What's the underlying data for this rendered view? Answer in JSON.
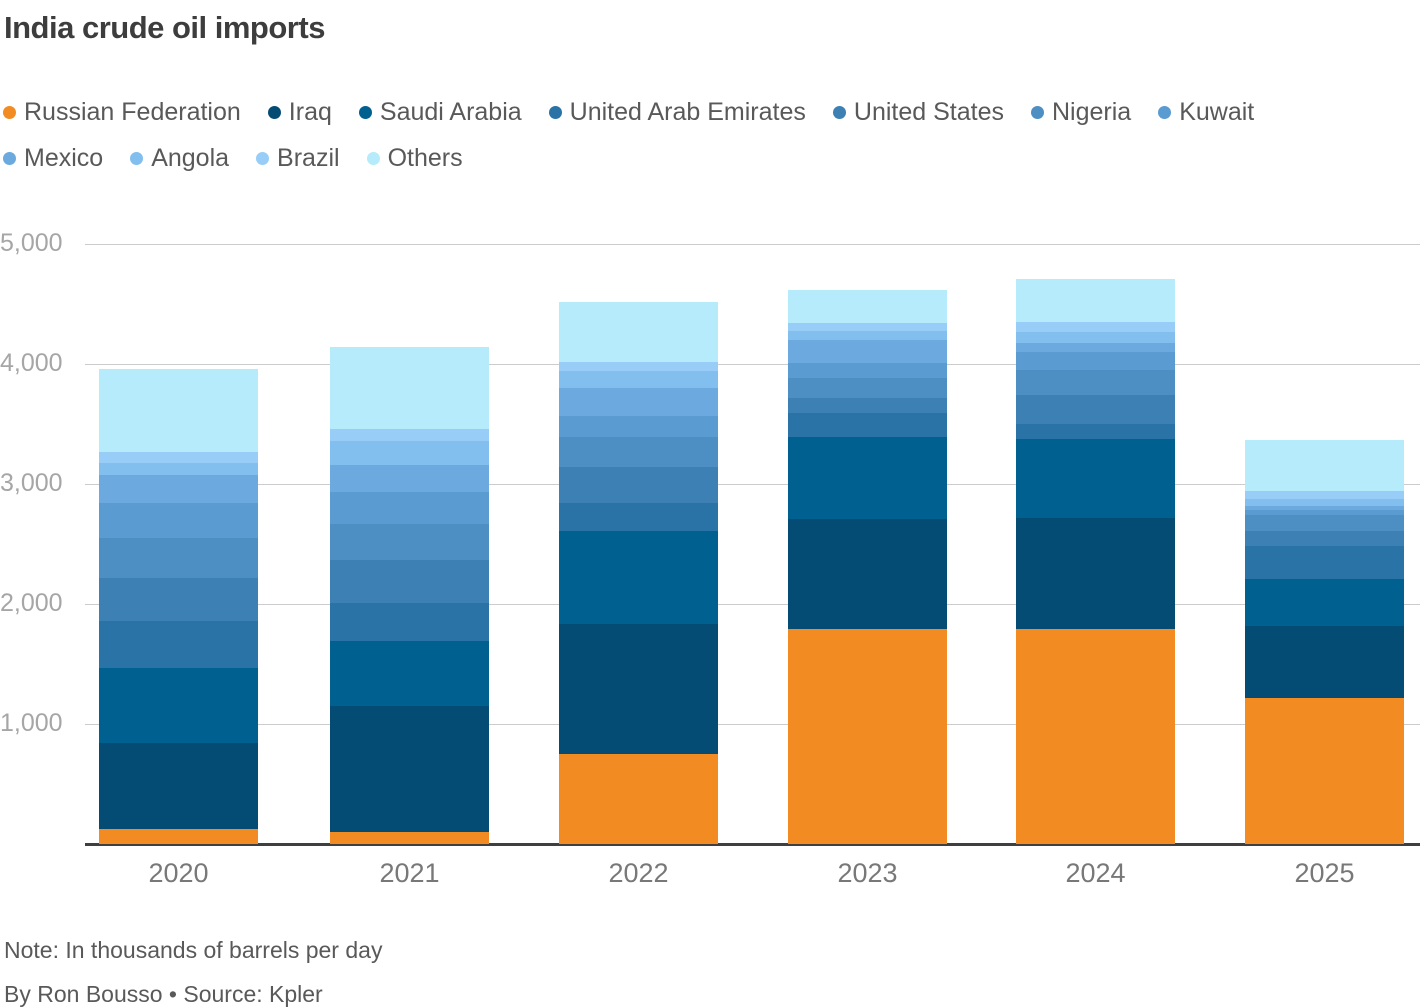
{
  "title": "India crude oil imports",
  "note": "Note: In thousands of barrels per day",
  "byline": "By Ron Bousso • Source: Kpler",
  "colors": {
    "background": "#ffffff",
    "title_text": "#3d3d3d",
    "body_text": "#595959",
    "gridline": "#cccccc",
    "axis_line": "#3f3f3f",
    "tick_label": "#a6a6a6",
    "year_label": "#787878"
  },
  "legend_rows": [
    [
      "Russian Federation",
      "Iraq",
      "Saudi Arabia",
      "United Arab Emirates",
      "United States",
      "Nigeria",
      "Kuwait"
    ],
    [
      "Mexico",
      "Angola",
      "Brazil",
      "Others"
    ]
  ],
  "chart_data": {
    "type": "bar",
    "stacked": true,
    "title": "India crude oil imports",
    "xlabel": "",
    "ylabel": "",
    "unit": "thousands of barrels per day",
    "grid": true,
    "legend_position": "top",
    "ylim": [
      0,
      5000
    ],
    "yticks": [
      {
        "value": 1000,
        "label": "1,000"
      },
      {
        "value": 2000,
        "label": "2,000"
      },
      {
        "value": 3000,
        "label": "3,000"
      },
      {
        "value": 4000,
        "label": "4,000"
      },
      {
        "value": 5000,
        "label": "5,000"
      }
    ],
    "categories": [
      "2020",
      "2021",
      "2022",
      "2023",
      "2024",
      "2025"
    ],
    "series": [
      {
        "name": "Russian Federation",
        "color": "#F28C22",
        "values": [
          125,
          100,
          750,
          1790,
          1790,
          1220
        ]
      },
      {
        "name": "Iraq",
        "color": "#054C75",
        "values": [
          720,
          1050,
          1080,
          915,
          930,
          595
        ]
      },
      {
        "name": "Saudi Arabia",
        "color": "#006191",
        "values": [
          625,
          540,
          780,
          690,
          655,
          395
        ]
      },
      {
        "name": "United Arab Emirates",
        "color": "#2A73A7",
        "values": [
          390,
          320,
          230,
          195,
          125,
          270
        ]
      },
      {
        "name": "United States",
        "color": "#3D80B3",
        "values": [
          360,
          360,
          300,
          130,
          240,
          130
        ]
      },
      {
        "name": "Nigeria",
        "color": "#4D8EC3",
        "values": [
          330,
          300,
          250,
          165,
          210,
          135
        ]
      },
      {
        "name": "Kuwait",
        "color": "#5A9BD2",
        "values": [
          290,
          260,
          180,
          120,
          150,
          40
        ]
      },
      {
        "name": "Mexico",
        "color": "#6BA9DE",
        "values": [
          235,
          230,
          230,
          195,
          75,
          35
        ]
      },
      {
        "name": "Angola",
        "color": "#82BEEE",
        "values": [
          100,
          200,
          145,
          75,
          90,
          55
        ]
      },
      {
        "name": "Brazil",
        "color": "#97CDF6",
        "values": [
          90,
          100,
          70,
          65,
          85,
          65
        ]
      },
      {
        "name": "Others",
        "color": "#B5EBFA",
        "values": [
          690,
          680,
          500,
          280,
          355,
          430
        ]
      }
    ],
    "totals": [
      3955,
      4140,
      4515,
      4620,
      4705,
      3370
    ]
  }
}
